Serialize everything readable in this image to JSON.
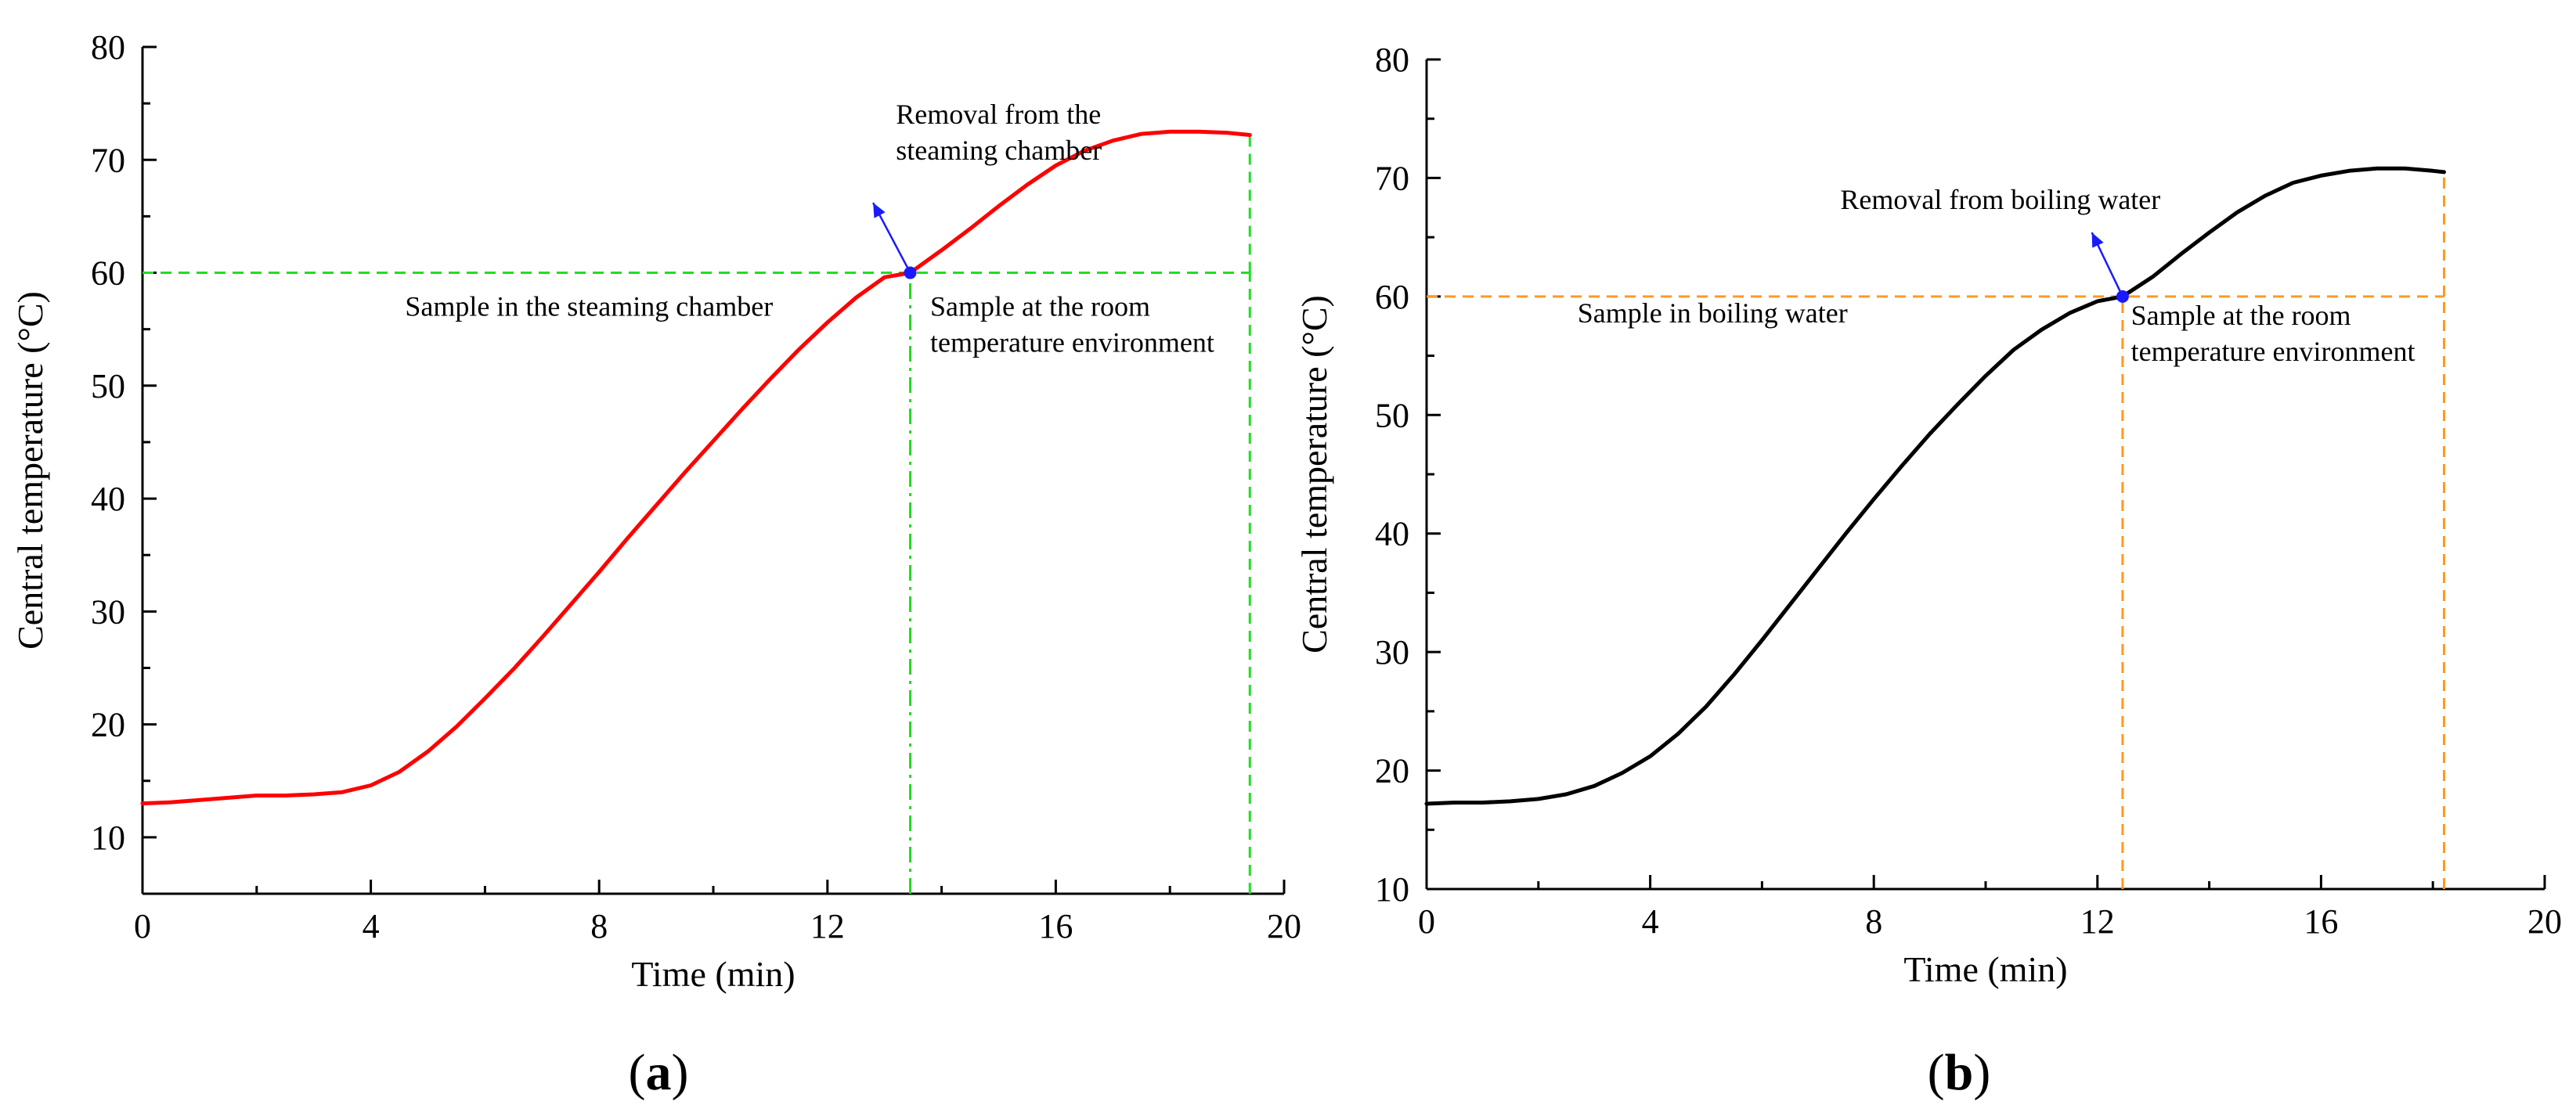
{
  "chart_data": [
    {
      "panel_label": "(a)",
      "type": "line",
      "xlabel": "Time (min)",
      "ylabel": "Central temperature (°C)",
      "xlim": [
        0,
        20
      ],
      "ylim": [
        5,
        80
      ],
      "x_ticks": [
        0,
        4,
        8,
        12,
        16,
        20
      ],
      "y_ticks": [
        10,
        20,
        30,
        40,
        50,
        60,
        70,
        80
      ],
      "grid": false,
      "series": [
        {
          "name": "Central temperature",
          "color": "#ff0000",
          "x": [
            0,
            0.5,
            1,
            1.5,
            2,
            2.5,
            3,
            3.5,
            4,
            4.5,
            5,
            5.5,
            6,
            6.5,
            7,
            7.5,
            8,
            8.5,
            9,
            9.5,
            10,
            10.5,
            11,
            11.5,
            12,
            12.5,
            13,
            13.45,
            14,
            14.5,
            15,
            15.5,
            16,
            16.5,
            17,
            17.5,
            18,
            18.5,
            19,
            19.4
          ],
          "y": [
            13.0,
            13.1,
            13.3,
            13.5,
            13.7,
            13.7,
            13.8,
            14.0,
            14.6,
            15.8,
            17.6,
            19.8,
            22.3,
            24.9,
            27.7,
            30.6,
            33.5,
            36.5,
            39.4,
            42.3,
            45.1,
            47.9,
            50.6,
            53.2,
            55.6,
            57.8,
            59.6,
            60.0,
            62.0,
            63.9,
            65.9,
            67.8,
            69.5,
            70.8,
            71.7,
            72.3,
            72.5,
            72.5,
            72.4,
            72.2
          ]
        }
      ],
      "guide_color": "#22dd22",
      "hline": {
        "y": 60,
        "x_from": 0,
        "x_to": 19.4
      },
      "vlines": [
        {
          "x": 13.45,
          "style": "dashdot"
        },
        {
          "x": 19.4,
          "style": "dashed"
        }
      ],
      "marker": {
        "x": 13.45,
        "y": 60,
        "color": "#1a1aff"
      },
      "arrow": {
        "from": [
          13.45,
          60
        ],
        "to": [
          12.8,
          66.2
        ],
        "color": "#1a1aff"
      },
      "annotations": [
        {
          "id": "removal",
          "lines": [
            "Removal from the",
            "steaming chamber"
          ],
          "x": 13.2,
          "y": 73.2
        },
        {
          "id": "sample-in",
          "lines": [
            "Sample in the steaming chamber"
          ],
          "x": 4.6,
          "y": 56.2
        },
        {
          "id": "sample-room",
          "lines": [
            "Sample at the room",
            "temperature environment"
          ],
          "x": 13.8,
          "y": 56.2
        }
      ]
    },
    {
      "panel_label": "(b)",
      "type": "line",
      "xlabel": "Time (min)",
      "ylabel": "Central temperature (°C)",
      "xlim": [
        0,
        20
      ],
      "ylim": [
        10,
        80
      ],
      "x_ticks": [
        0,
        4,
        8,
        12,
        16,
        20
      ],
      "y_ticks": [
        10,
        20,
        30,
        40,
        50,
        60,
        70,
        80
      ],
      "grid": false,
      "series": [
        {
          "name": "Central temperature",
          "color": "#000000",
          "x": [
            0,
            0.5,
            1,
            1.5,
            2,
            2.5,
            3,
            3.5,
            4,
            4.5,
            5,
            5.5,
            6,
            6.5,
            7,
            7.5,
            8,
            8.5,
            9,
            9.5,
            10,
            10.5,
            11,
            11.5,
            12,
            12.45,
            13,
            13.5,
            14,
            14.5,
            15,
            15.5,
            16,
            16.5,
            17,
            17.5,
            18,
            18.2
          ],
          "y": [
            17.2,
            17.3,
            17.3,
            17.4,
            17.6,
            18.0,
            18.7,
            19.8,
            21.2,
            23.1,
            25.4,
            28.1,
            31.0,
            34.0,
            37.0,
            40.0,
            42.9,
            45.7,
            48.4,
            50.9,
            53.3,
            55.5,
            57.2,
            58.6,
            59.6,
            60.0,
            61.7,
            63.6,
            65.4,
            67.1,
            68.5,
            69.6,
            70.2,
            70.6,
            70.8,
            70.8,
            70.6,
            70.5
          ]
        }
      ],
      "guide_color": "#ff9922",
      "hline": {
        "y": 60,
        "x_from": 0,
        "x_to": 18.2
      },
      "vlines": [
        {
          "x": 12.45,
          "style": "dashed"
        },
        {
          "x": 18.2,
          "style": "dashed"
        }
      ],
      "marker": {
        "x": 12.45,
        "y": 60,
        "color": "#1a1aff"
      },
      "arrow": {
        "from": [
          12.45,
          60
        ],
        "to": [
          11.9,
          65.4
        ],
        "color": "#1a1aff"
      },
      "annotations": [
        {
          "id": "removal",
          "lines": [
            "Removal from boiling water"
          ],
          "x": 7.4,
          "y": 67.4
        },
        {
          "id": "sample-in",
          "lines": [
            "Sample in boiling water"
          ],
          "x": 2.7,
          "y": 57.8
        },
        {
          "id": "sample-room",
          "lines": [
            "Sample at the room",
            "temperature environment"
          ],
          "x": 12.6,
          "y": 57.6
        }
      ]
    }
  ]
}
